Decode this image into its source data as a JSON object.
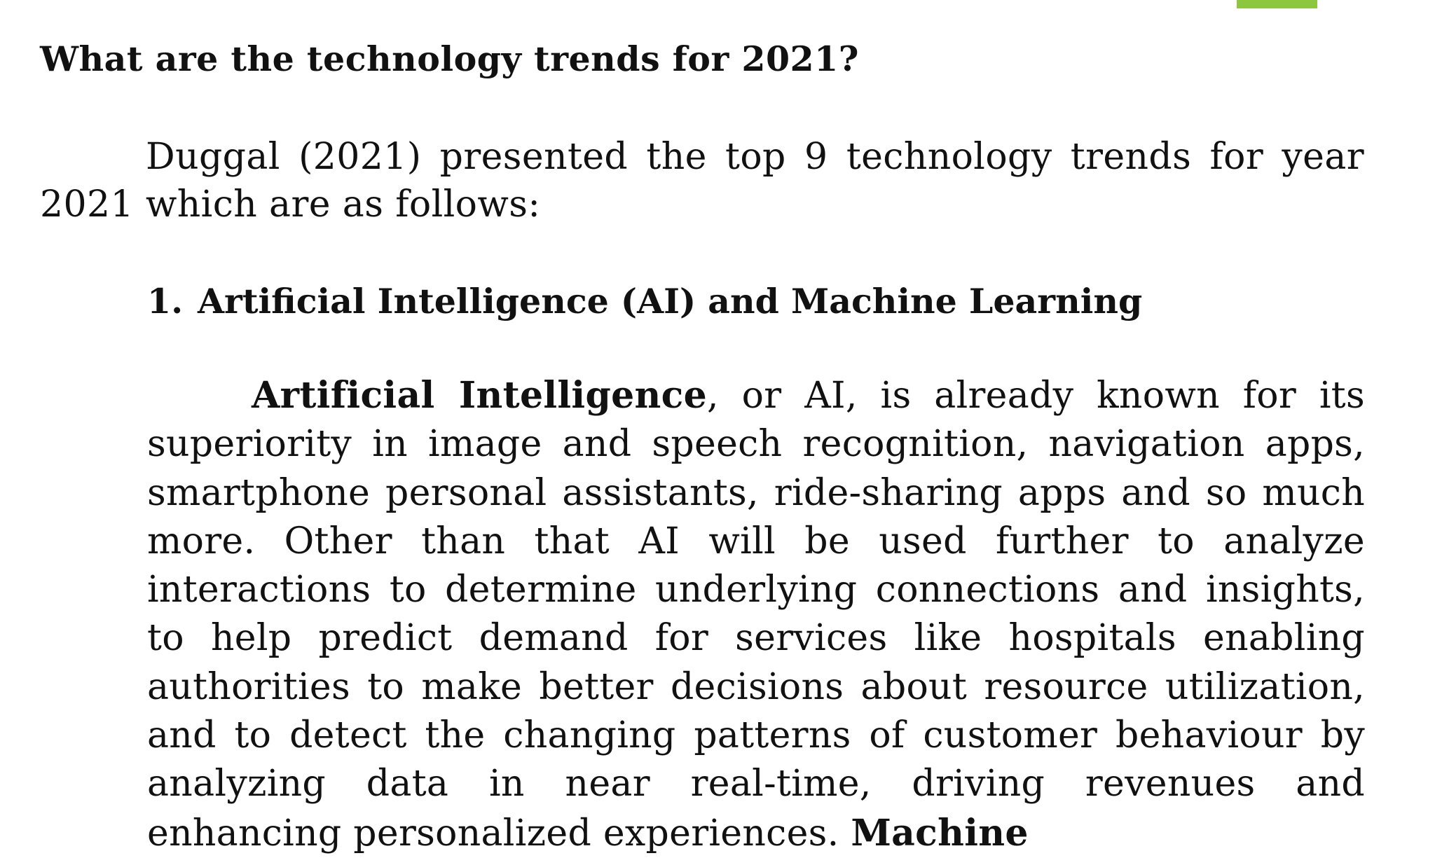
{
  "colors": {
    "accent": "#8dc63f",
    "text": "#111111",
    "background": "#ffffff"
  },
  "document": {
    "heading": "What are the technology trends for 2021?",
    "intro": "Duggal (2021) presented the top 9 technology trends for year 2021 which are as follows:",
    "section": {
      "number": "1.",
      "title": "Artificial Intelligence (AI) and Machine Learning",
      "lead_term": "Artificial Intelligence",
      "body": ", or AI, is already known for its superiority in image and speech recognition, navigation apps, smartphone personal assistants, ride-sharing apps and so much more. Other than that AI will be used further to analyze interactions to determine underlying connections and insights, to help predict demand for services like hospitals enabling authorities to make better decisions about resource utilization, and to detect the changing patterns of customer behaviour by analyzing data in near real-time, driving revenues and enhancing personalized experiences. ",
      "trailing_term": "Machine"
    }
  }
}
